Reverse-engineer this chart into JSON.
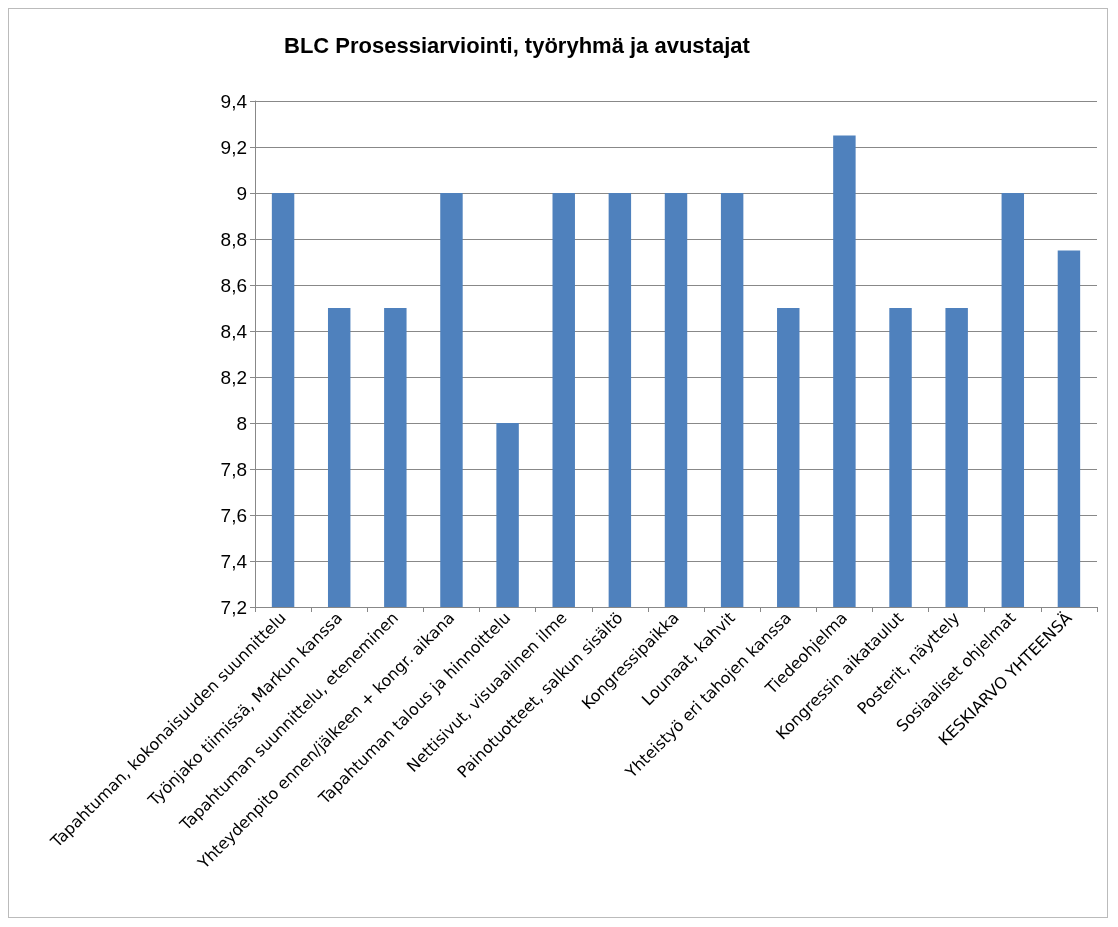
{
  "chart_data": {
    "type": "bar",
    "title": "BLC Prosessiarviointi, työryhmä ja avustajat",
    "categories": [
      "Tapahtuman, kokonaisuuden suunnittelu",
      "Työnjako tiimissä, Markun kanssa",
      "Tapahtuman suunnittelu, eteneminen",
      "Yhteydenpito ennen/jälkeen + kongr. aikana",
      "Tapahtuman talous ja hinnoittelu",
      "Nettisivut, visuaalinen ilme",
      "Painotuotteet, salkun sisältö",
      "Kongressipaikka",
      "Lounaat, kahvit",
      "Yhteistyö eri tahojen kanssa",
      "Tiedeohjelma",
      "Kongressin aikataulut",
      "Posterit, näyttely",
      "Sosiaaliset ohjelmat",
      "KESKIARVO YHTEENSÄ"
    ],
    "values": [
      9,
      8.5,
      8.5,
      9,
      8,
      9,
      9,
      9,
      9,
      8.5,
      9.25,
      8.5,
      8.5,
      9,
      8.75
    ],
    "color": "#4f81bd",
    "ylim": [
      7.2,
      9.4
    ],
    "yticks": [
      {
        "value": 7.2,
        "label": "7,2"
      },
      {
        "value": 7.4,
        "label": "7,4"
      },
      {
        "value": 7.6,
        "label": "7,6"
      },
      {
        "value": 7.8,
        "label": "7,8"
      },
      {
        "value": 8,
        "label": "8"
      },
      {
        "value": 8.2,
        "label": "8,2"
      },
      {
        "value": 8.4,
        "label": "8,4"
      },
      {
        "value": 8.6,
        "label": "8,6"
      },
      {
        "value": 8.8,
        "label": "8,8"
      },
      {
        "value": 9,
        "label": "9"
      },
      {
        "value": 9.2,
        "label": "9,2"
      },
      {
        "value": 9.4,
        "label": "9,4"
      }
    ],
    "grid": "y"
  }
}
